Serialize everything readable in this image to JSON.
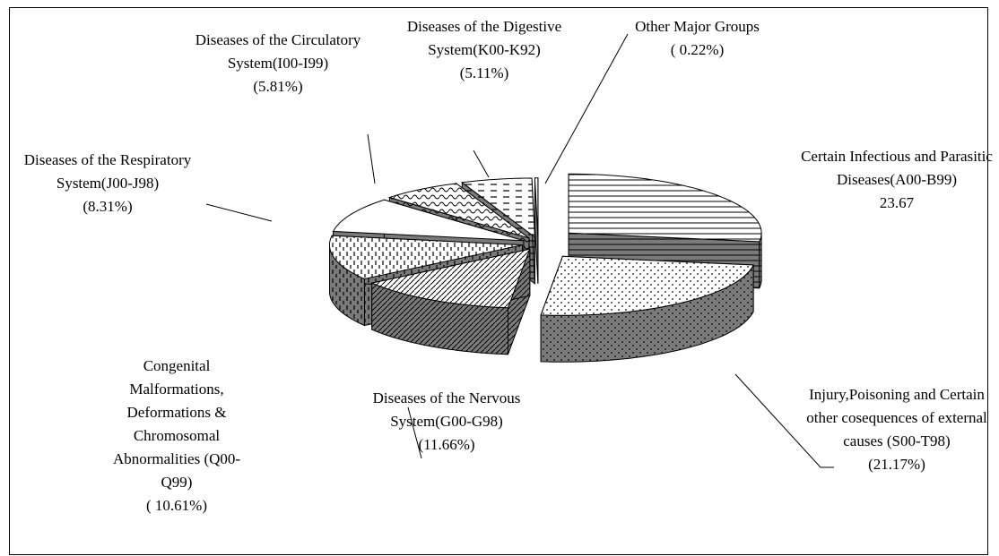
{
  "chart_data": {
    "type": "pie3d",
    "categories": [
      "Certain Infectious and Parasitic Diseases(A00-B99)",
      "Injury,Poisoning and Certain other cosequences of external causes (S00-T98)",
      "Diseases of the Nervous System(G00-G98)",
      "Congenital Malformations, Deformations & Chromosomal Abnormalities (Q00-Q99)",
      "Diseases of the Respiratory System(J00-J98)",
      "Diseases of the Circulatory System(I00-I99)",
      "Diseases of the Digestive System(K00-K92)",
      "Other Major Groups"
    ],
    "values": [
      23.67,
      21.17,
      11.66,
      10.61,
      8.31,
      5.81,
      5.11,
      0.22
    ],
    "value_labels": [
      "23.67",
      "(21.17%)",
      "(11.66%)",
      "( 10.61%)",
      "(8.31%)",
      "(5.81%)",
      "(5.11%)",
      "( 0.22%)"
    ]
  }
}
